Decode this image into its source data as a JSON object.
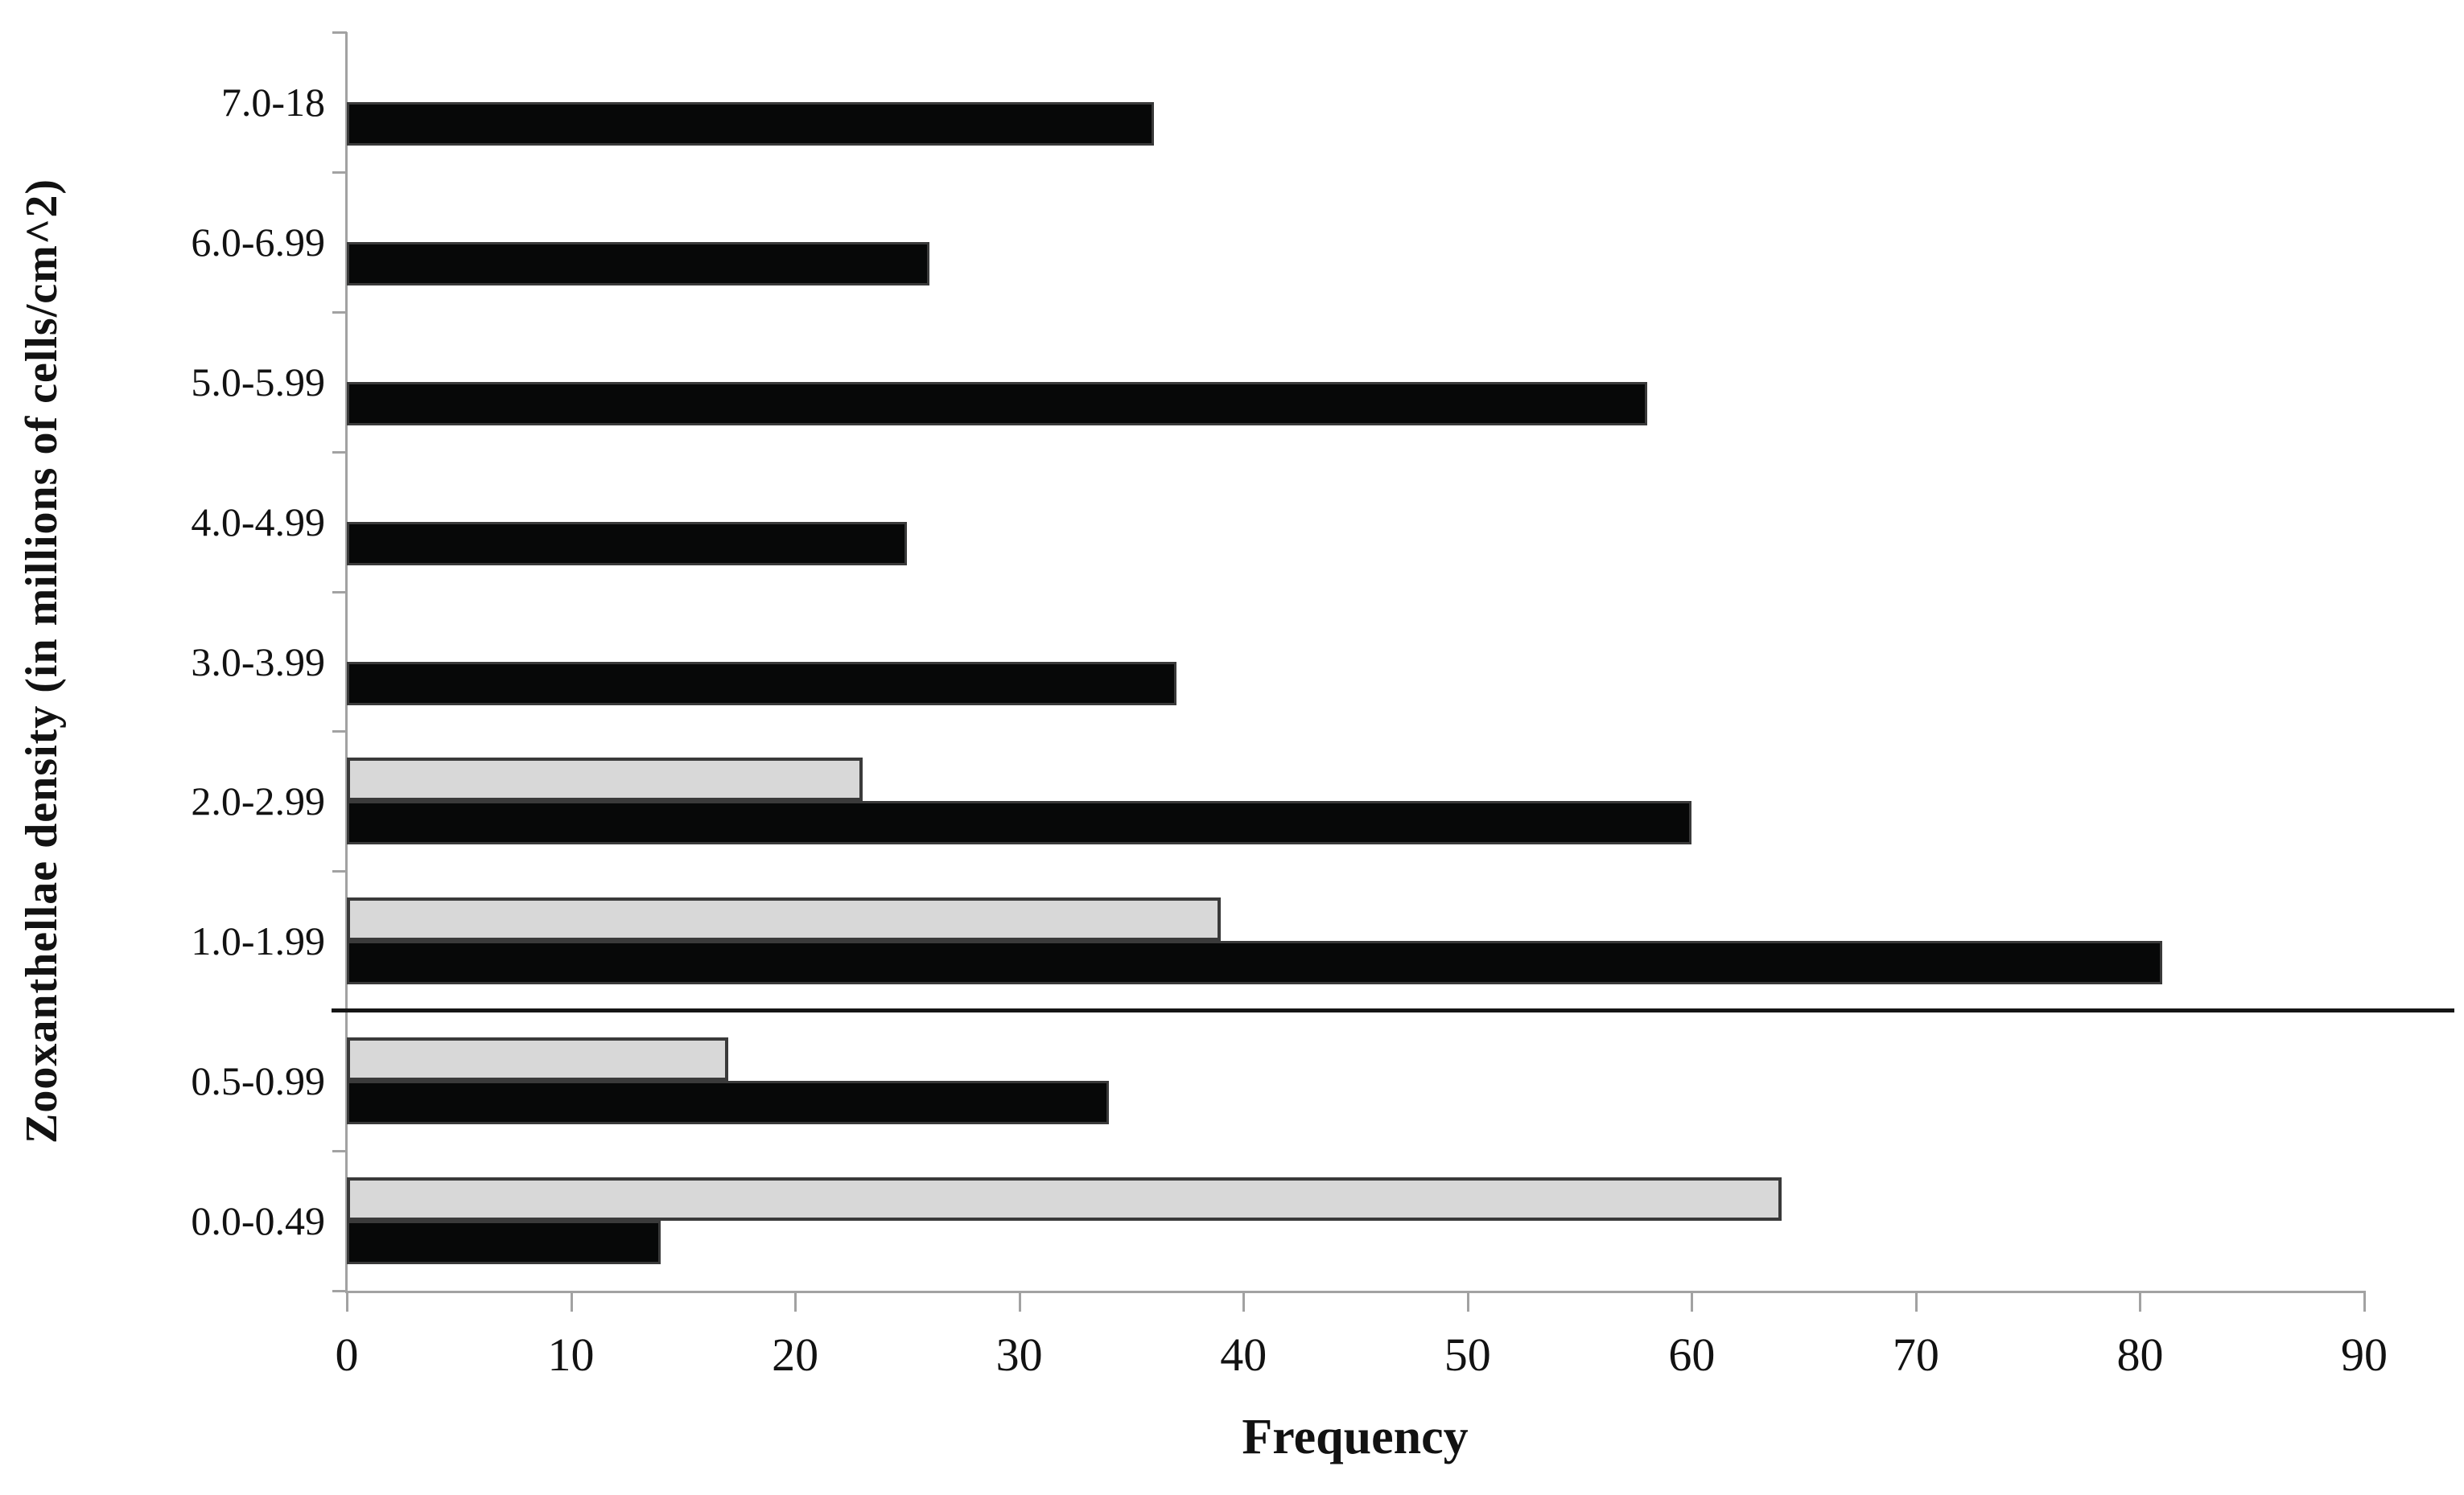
{
  "figure": {
    "background": "#ffffff"
  },
  "chart_data": {
    "type": "bar",
    "orientation": "horizontal",
    "title": "",
    "xlabel": "Frequency",
    "ylabel": "Zooxanthellae density (in millions of cells/cm^2)",
    "categories": [
      "7.0-18",
      "6.0-6.99",
      "5.0-5.99",
      "4.0-4.99",
      "3.0-3.99",
      "2.0-2.99",
      "1.0-1.99",
      "0.5-0.99",
      "0.0-0.49"
    ],
    "series": [
      {
        "name": "gray",
        "color": "#d8d8d8",
        "border_color": "#3a3a3a",
        "values": [
          null,
          null,
          null,
          null,
          null,
          23,
          39,
          17,
          64
        ]
      },
      {
        "name": "black",
        "color": "#070808",
        "border_color": "#3a3a3a",
        "values": [
          36,
          26,
          58,
          25,
          37,
          60,
          81,
          34,
          14
        ]
      }
    ],
    "x_ticks": [
      0,
      10,
      20,
      30,
      40,
      50,
      60,
      70,
      80,
      90
    ],
    "xlim": [
      0,
      90
    ],
    "axis_color": "#a2a2a2",
    "text_color": "#121212",
    "annotations": [
      {
        "type": "hline_separator",
        "after_category": "1.0-1.99",
        "color": "#161616"
      }
    ],
    "legend": "none",
    "grid": "off"
  }
}
